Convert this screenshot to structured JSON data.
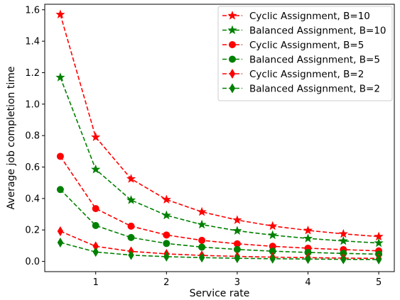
{
  "chart_data": {
    "type": "line",
    "title": "",
    "xlabel": "Service rate",
    "ylabel": "Average job completion time",
    "xlim": [
      0.28,
      5.22
    ],
    "ylim": [
      -0.065,
      1.635
    ],
    "xticks": [
      1,
      2,
      3,
      4,
      5
    ],
    "xtick_labels": [
      "1",
      "2",
      "3",
      "4",
      "5"
    ],
    "yticks": [
      0.0,
      0.2,
      0.4,
      0.6,
      0.8,
      1.0,
      1.2,
      1.4,
      1.6
    ],
    "ytick_labels": [
      "0.0",
      "0.2",
      "0.4",
      "0.6",
      "0.8",
      "1.0",
      "1.2",
      "1.4",
      "1.6"
    ],
    "grid": false,
    "legend_position": "top-right",
    "x": [
      0.5,
      1.0,
      1.5,
      2.0,
      2.5,
      3.0,
      3.5,
      4.0,
      4.5,
      5.0
    ],
    "series": [
      {
        "name": "Cyclic Assignment, B=10",
        "color": "#ff0000",
        "marker": "star",
        "values": [
          1.57,
          0.79,
          0.525,
          0.393,
          0.315,
          0.263,
          0.225,
          0.197,
          0.175,
          0.158
        ]
      },
      {
        "name": "Balanced Assignment, B=10",
        "color": "#008000",
        "marker": "star",
        "values": [
          1.17,
          0.585,
          0.39,
          0.293,
          0.234,
          0.195,
          0.167,
          0.146,
          0.13,
          0.117
        ]
      },
      {
        "name": "Cyclic Assignment, B=5",
        "color": "#ff0000",
        "marker": "circle",
        "values": [
          0.668,
          0.336,
          0.224,
          0.168,
          0.134,
          0.112,
          0.096,
          0.084,
          0.075,
          0.067
        ]
      },
      {
        "name": "Balanced Assignment, B=5",
        "color": "#008000",
        "marker": "circle",
        "values": [
          0.457,
          0.228,
          0.152,
          0.114,
          0.091,
          0.076,
          0.065,
          0.057,
          0.051,
          0.046
        ]
      },
      {
        "name": "Cyclic Assignment, B=2",
        "color": "#ff0000",
        "marker": "thin-diamond",
        "values": [
          0.192,
          0.096,
          0.064,
          0.048,
          0.038,
          0.032,
          0.027,
          0.024,
          0.021,
          0.019
        ]
      },
      {
        "name": "Balanced Assignment, B=2",
        "color": "#008000",
        "marker": "thin-diamond",
        "values": [
          0.12,
          0.06,
          0.04,
          0.03,
          0.024,
          0.02,
          0.017,
          0.015,
          0.013,
          0.012
        ]
      }
    ]
  }
}
